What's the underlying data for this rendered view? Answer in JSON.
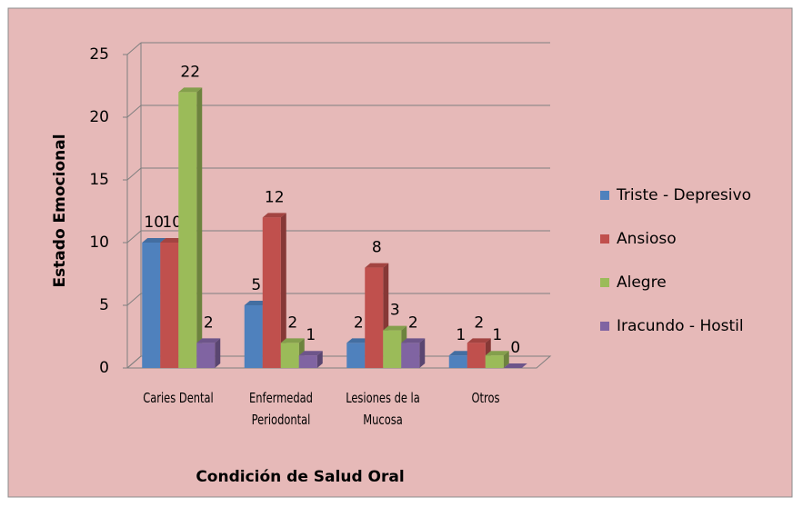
{
  "chart_data": {
    "type": "bar3d",
    "x_label": "Condición de Salud Oral",
    "y_label": "Estado Emocional",
    "categories": [
      "Caries Dental",
      "Enfermedad Periodontal",
      "Lesiones de la Mucosa",
      "Otros"
    ],
    "series": [
      {
        "name": "Triste - Depresivo",
        "color": "#4f81bd",
        "values": [
          10,
          5,
          2,
          1
        ]
      },
      {
        "name": "Ansioso",
        "color": "#c0504d",
        "values": [
          10,
          12,
          8,
          2
        ]
      },
      {
        "name": "Alegre",
        "color": "#9bbb59",
        "values": [
          22,
          2,
          3,
          1
        ]
      },
      {
        "name": "Iracundo - Hostil",
        "color": "#8064a2",
        "values": [
          2,
          1,
          2,
          0
        ]
      }
    ],
    "ylim": [
      0,
      25
    ],
    "yticks": [
      0,
      5,
      10,
      15,
      20,
      25
    ],
    "grid": true,
    "legend": "right"
  }
}
